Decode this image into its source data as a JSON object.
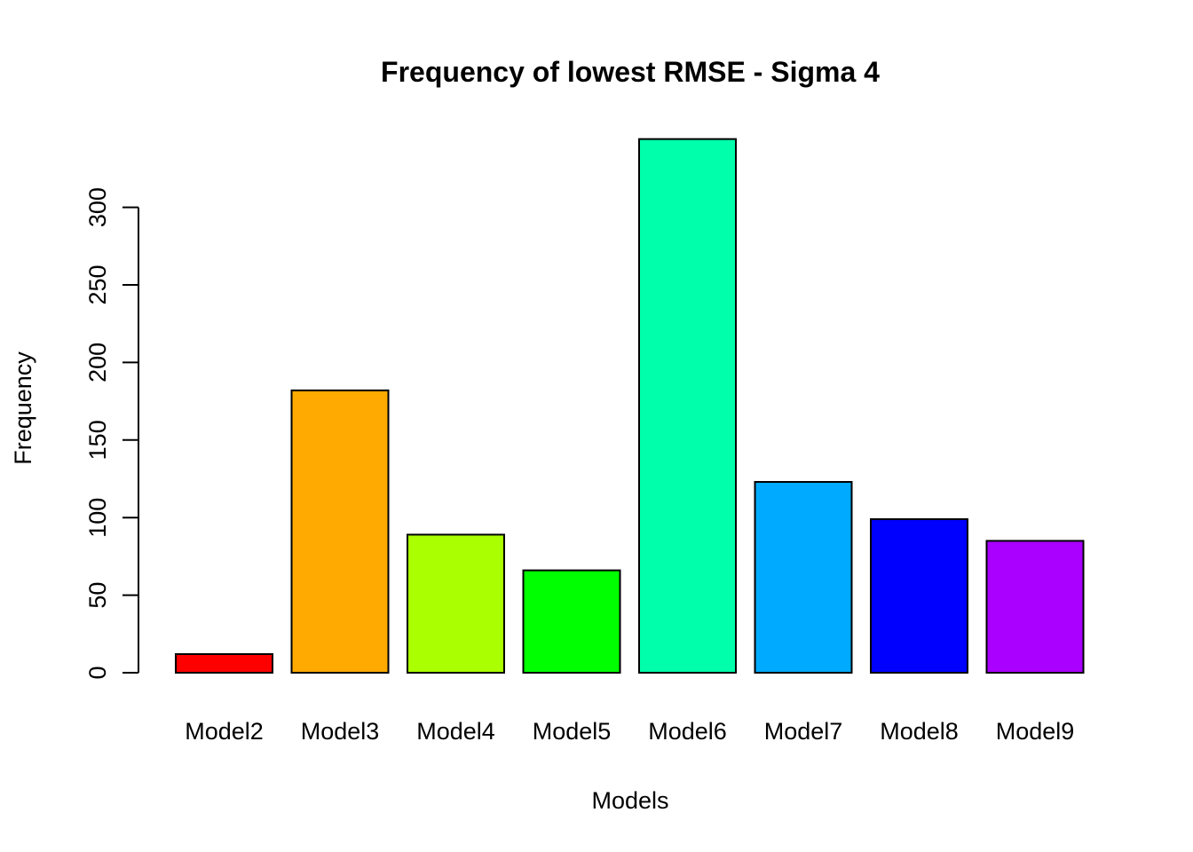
{
  "chart_data": {
    "type": "bar",
    "title": "Frequency of lowest RMSE - Sigma 4",
    "xlabel": "Models",
    "ylabel": "Frequency",
    "categories": [
      "Model2",
      "Model3",
      "Model4",
      "Model5",
      "Model6",
      "Model7",
      "Model8",
      "Model9"
    ],
    "values": [
      12,
      182,
      89,
      66,
      344,
      123,
      99,
      85
    ],
    "colors": [
      "#ff0000",
      "#ffaa00",
      "#aaff00",
      "#00ff00",
      "#00ffaa",
      "#00aaff",
      "#0000ff",
      "#aa00ff"
    ],
    "yticks": [
      0,
      50,
      100,
      150,
      200,
      250,
      300
    ],
    "ylim": [
      0,
      344
    ],
    "grid": false,
    "legend": "none"
  }
}
